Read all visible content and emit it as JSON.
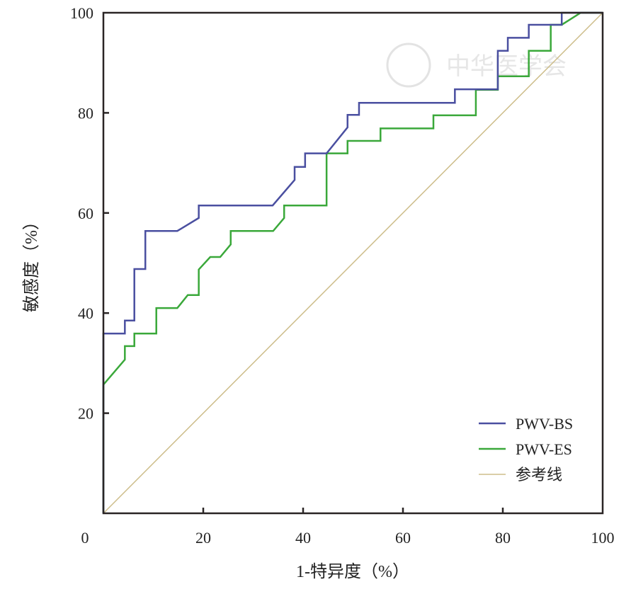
{
  "chart_data": {
    "type": "line",
    "title": "",
    "xlabel": "1-特异度（%）",
    "ylabel": "敏感度（%）",
    "xlim": [
      0,
      100
    ],
    "ylim": [
      0,
      100
    ],
    "x_ticks": [
      "0",
      "20",
      "40",
      "60",
      "80",
      "100"
    ],
    "y_ticks": [
      "20",
      "40",
      "60",
      "80",
      "100"
    ],
    "grid": false,
    "legend_position": "bottom-right",
    "watermark": "中华医学会",
    "series": [
      {
        "name": "PWV-BS",
        "color": "#4a4fa0",
        "points": [
          [
            0,
            0
          ],
          [
            0,
            35.9
          ],
          [
            4.3,
            35.9
          ],
          [
            4.3,
            38.5
          ],
          [
            6.2,
            38.5
          ],
          [
            6.2,
            48.8
          ],
          [
            8.4,
            48.8
          ],
          [
            8.4,
            56.4
          ],
          [
            14.8,
            56.4
          ],
          [
            19.1,
            59.0
          ],
          [
            19.1,
            61.5
          ],
          [
            33.9,
            61.5
          ],
          [
            38.3,
            66.6
          ],
          [
            38.3,
            69.2
          ],
          [
            40.4,
            69.2
          ],
          [
            40.4,
            71.9
          ],
          [
            44.7,
            71.9
          ],
          [
            48.9,
            77.1
          ],
          [
            48.9,
            79.6
          ],
          [
            51.2,
            79.6
          ],
          [
            51.2,
            82.0
          ],
          [
            70.4,
            82.0
          ],
          [
            70.4,
            84.7
          ],
          [
            79.0,
            84.7
          ],
          [
            79.0,
            92.4
          ],
          [
            81.0,
            92.4
          ],
          [
            81.0,
            95.0
          ],
          [
            85.2,
            95.0
          ],
          [
            85.2,
            97.6
          ],
          [
            91.8,
            97.6
          ],
          [
            91.8,
            100
          ],
          [
            100,
            100
          ]
        ]
      },
      {
        "name": "PWV-ES",
        "color": "#3aa83a",
        "points": [
          [
            0,
            0
          ],
          [
            0,
            25.7
          ],
          [
            4.3,
            30.7
          ],
          [
            4.3,
            33.4
          ],
          [
            6.2,
            33.4
          ],
          [
            6.2,
            35.9
          ],
          [
            10.6,
            35.9
          ],
          [
            10.6,
            41.0
          ],
          [
            14.8,
            41.0
          ],
          [
            16.9,
            43.6
          ],
          [
            19.1,
            43.6
          ],
          [
            19.1,
            48.7
          ],
          [
            21.4,
            51.2
          ],
          [
            23.4,
            51.2
          ],
          [
            25.5,
            53.7
          ],
          [
            25.5,
            56.4
          ],
          [
            34.0,
            56.4
          ],
          [
            36.2,
            59.0
          ],
          [
            36.2,
            61.5
          ],
          [
            44.7,
            61.5
          ],
          [
            44.7,
            71.9
          ],
          [
            48.9,
            71.9
          ],
          [
            48.9,
            74.4
          ],
          [
            55.5,
            74.4
          ],
          [
            55.5,
            76.9
          ],
          [
            66.1,
            76.9
          ],
          [
            66.1,
            79.5
          ],
          [
            74.6,
            79.5
          ],
          [
            74.6,
            84.6
          ],
          [
            79.0,
            84.6
          ],
          [
            79.0,
            87.3
          ],
          [
            85.2,
            87.3
          ],
          [
            85.2,
            92.4
          ],
          [
            89.6,
            92.4
          ],
          [
            89.6,
            97.6
          ],
          [
            91.8,
            97.6
          ],
          [
            95.6,
            100
          ],
          [
            100,
            100
          ]
        ]
      },
      {
        "name": "参考线",
        "color": "#cdbd8a",
        "points": [
          [
            0,
            0
          ],
          [
            100,
            100
          ]
        ]
      }
    ]
  }
}
